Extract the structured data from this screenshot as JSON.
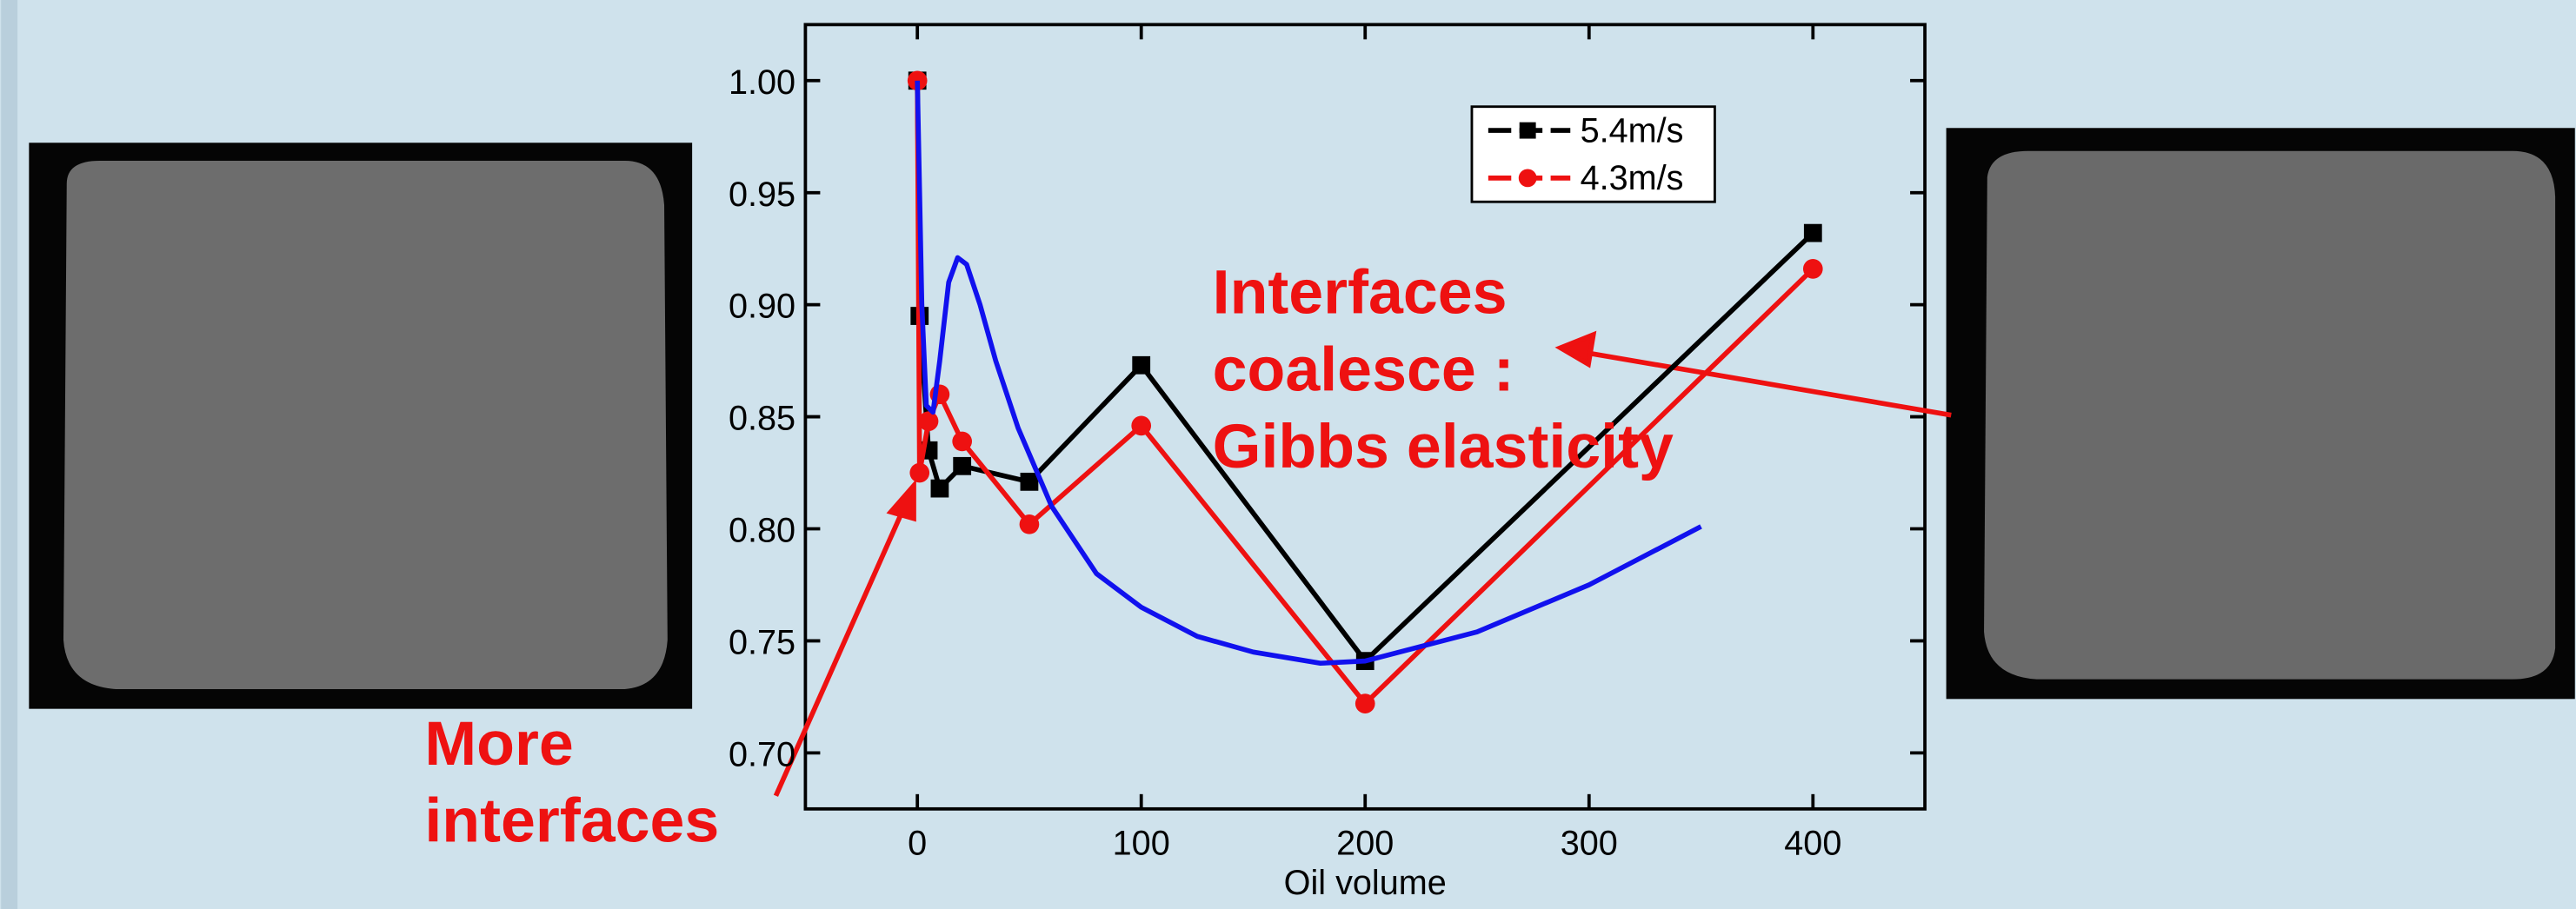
{
  "chart_data": {
    "type": "line",
    "xlabel": "Oil volume",
    "xlim": [
      -50,
      450
    ],
    "ylim": [
      0.675,
      1.025
    ],
    "xticks": [
      0,
      100,
      200,
      300,
      400
    ],
    "yticks": [
      {
        "value": 0.7,
        "label": "0.70"
      },
      0.75,
      {
        "value": 0.8,
        "label": "0.80"
      },
      0.85,
      {
        "value": 0.9,
        "label": "0.90"
      },
      0.95,
      {
        "value": 1.0,
        "label": "1.00"
      }
    ],
    "legend": "upper right",
    "series": [
      {
        "name": "5.4m/s",
        "color": "#000000",
        "marker": "square",
        "x": [
          0,
          1,
          5,
          10,
          20,
          50,
          100,
          200,
          400
        ],
        "values": [
          1.0,
          0.895,
          0.835,
          0.818,
          0.828,
          0.821,
          0.873,
          0.741,
          0.932
        ]
      },
      {
        "name": "4.3m/s",
        "color": "#ee1111",
        "marker": "circle",
        "x": [
          0,
          1,
          5,
          10,
          20,
          50,
          100,
          200,
          400
        ],
        "values": [
          1.0,
          0.825,
          0.848,
          0.86,
          0.839,
          0.802,
          0.846,
          0.722,
          0.916
        ]
      },
      {
        "color": "#1111ee",
        "marker": "none",
        "x": [
          0,
          2,
          4,
          7,
          10,
          14,
          18,
          22,
          28,
          35,
          45,
          60,
          80,
          100,
          125,
          150,
          180,
          200,
          250,
          300,
          350
        ],
        "values": [
          1.0,
          0.9,
          0.855,
          0.852,
          0.875,
          0.91,
          0.921,
          0.918,
          0.9,
          0.875,
          0.845,
          0.81,
          0.78,
          0.765,
          0.752,
          0.745,
          0.74,
          0.741,
          0.754,
          0.775,
          0.801
        ]
      }
    ],
    "annotations": [
      {
        "lines": [
          "Interfaces",
          "coalesce :",
          "Gibbs elasticity"
        ]
      },
      {
        "lines": [
          "More",
          "interfaces"
        ]
      }
    ]
  }
}
